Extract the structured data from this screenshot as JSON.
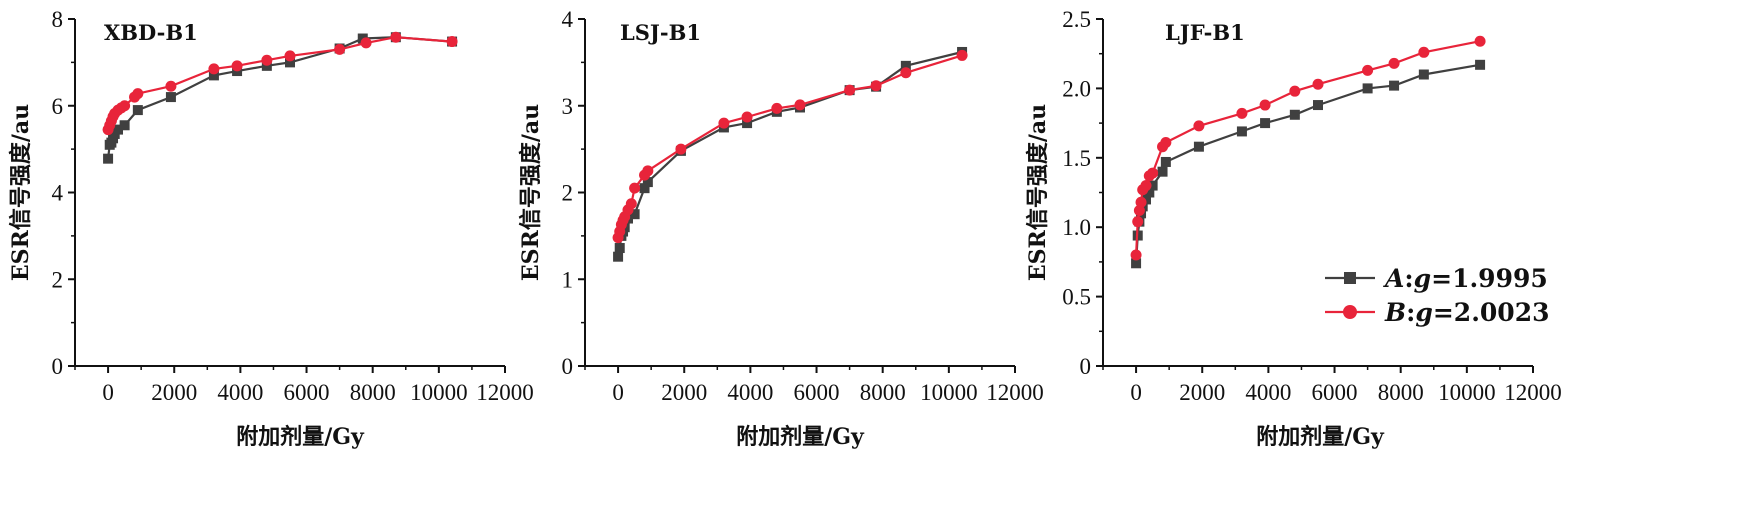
{
  "chart_data": [
    {
      "type": "line",
      "title": "XBD-B1",
      "xlabel": "附加剂量/Gy",
      "ylabel": "ESR信号强度/au",
      "xlim": [
        -1000,
        12000
      ],
      "ylim": [
        0,
        8
      ],
      "xticks": [
        "0",
        "2000",
        "4000",
        "6000",
        "8000",
        "10000",
        "12000"
      ],
      "xtick_values": [
        0,
        2000,
        4000,
        6000,
        8000,
        10000,
        12000
      ],
      "yticks": [
        "0",
        "2",
        "4",
        "6",
        "8"
      ],
      "ytick_values": [
        0,
        2,
        4,
        6,
        8
      ],
      "series": [
        {
          "name": "A:g=1.9995",
          "x": [
            0,
            50,
            100,
            150,
            200,
            300,
            500,
            900,
            1900,
            3200,
            3900,
            4800,
            5500,
            7000,
            7700,
            8700,
            10400
          ],
          "y": [
            4.78,
            5.1,
            5.15,
            5.25,
            5.35,
            5.45,
            5.55,
            5.9,
            6.2,
            6.7,
            6.8,
            6.92,
            7.0,
            7.32,
            7.55,
            7.58,
            7.48
          ]
        },
        {
          "name": "B:g=2.0023",
          "x": [
            0,
            50,
            100,
            150,
            200,
            300,
            400,
            500,
            800,
            900,
            1900,
            3200,
            3900,
            4800,
            5500,
            7000,
            7800,
            8700,
            10400
          ],
          "y": [
            5.45,
            5.55,
            5.65,
            5.75,
            5.82,
            5.9,
            5.95,
            6.0,
            6.2,
            6.28,
            6.45,
            6.85,
            6.92,
            7.05,
            7.15,
            7.3,
            7.45,
            7.58,
            7.48
          ]
        }
      ]
    },
    {
      "type": "line",
      "title": "LSJ-B1",
      "xlabel": "附加剂量/Gy",
      "ylabel": "ESR信号强度/au",
      "xlim": [
        -1000,
        12000
      ],
      "ylim": [
        0,
        4
      ],
      "xticks": [
        "0",
        "2000",
        "4000",
        "6000",
        "8000",
        "10000",
        "12000"
      ],
      "xtick_values": [
        0,
        2000,
        4000,
        6000,
        8000,
        10000,
        12000
      ],
      "yticks": [
        "0",
        "1",
        "2",
        "3",
        "4"
      ],
      "ytick_values": [
        0,
        1,
        2,
        3,
        4
      ],
      "series": [
        {
          "name": "A:g=1.9995",
          "x": [
            0,
            50,
            100,
            150,
            200,
            300,
            500,
            800,
            900,
            1900,
            3200,
            3900,
            4800,
            5500,
            7000,
            7800,
            8700,
            10400
          ],
          "y": [
            1.26,
            1.36,
            1.5,
            1.55,
            1.6,
            1.7,
            1.75,
            2.05,
            2.12,
            2.48,
            2.75,
            2.8,
            2.93,
            2.98,
            3.18,
            3.22,
            3.46,
            3.62
          ]
        },
        {
          "name": "B:g=2.0023",
          "x": [
            0,
            50,
            100,
            150,
            200,
            300,
            400,
            500,
            800,
            900,
            1900,
            3200,
            3900,
            4800,
            5500,
            7000,
            7800,
            8700,
            10400
          ],
          "y": [
            1.48,
            1.55,
            1.63,
            1.68,
            1.72,
            1.8,
            1.87,
            2.05,
            2.2,
            2.25,
            2.5,
            2.8,
            2.87,
            2.97,
            3.01,
            3.18,
            3.23,
            3.38,
            3.58
          ]
        }
      ]
    },
    {
      "type": "line",
      "title": "LJF-B1",
      "xlabel": "附加剂量/Gy",
      "ylabel": "ESR信号强度/au",
      "xlim": [
        -1000,
        12000
      ],
      "ylim": [
        0,
        2.5
      ],
      "xticks": [
        "0",
        "2000",
        "4000",
        "6000",
        "8000",
        "10000",
        "12000"
      ],
      "xtick_values": [
        0,
        2000,
        4000,
        6000,
        8000,
        10000,
        12000
      ],
      "yticks": [
        "0",
        "0.5",
        "1.0",
        "1.5",
        "2.0",
        "2.5"
      ],
      "ytick_values": [
        0,
        0.5,
        1.0,
        1.5,
        2.0,
        2.5
      ],
      "series": [
        {
          "name": "A:g=1.9995",
          "x": [
            0,
            50,
            100,
            150,
            200,
            300,
            400,
            500,
            800,
            900,
            1900,
            3200,
            3900,
            4800,
            5500,
            7000,
            7800,
            8700,
            10400
          ],
          "y": [
            0.74,
            0.94,
            1.04,
            1.1,
            1.15,
            1.2,
            1.25,
            1.3,
            1.4,
            1.47,
            1.58,
            1.69,
            1.75,
            1.81,
            1.88,
            2.0,
            2.02,
            2.1,
            2.17
          ]
        },
        {
          "name": "B:g=2.0023",
          "x": [
            0,
            50,
            100,
            150,
            200,
            300,
            400,
            500,
            800,
            900,
            1900,
            3200,
            3900,
            4800,
            5500,
            7000,
            7800,
            8700,
            10400
          ],
          "y": [
            0.8,
            1.04,
            1.12,
            1.18,
            1.27,
            1.3,
            1.37,
            1.39,
            1.58,
            1.61,
            1.73,
            1.82,
            1.88,
            1.98,
            2.03,
            2.13,
            2.18,
            2.26,
            2.34
          ]
        }
      ]
    }
  ],
  "legend": {
    "items": [
      {
        "label": "A:g=1.9995",
        "letter": "A",
        "gval": "1.9995",
        "color": "#404040",
        "marker": "square"
      },
      {
        "label": "B:g=2.0023",
        "letter": "B",
        "gval": "2.0023",
        "color": "#e8243a",
        "marker": "circle"
      }
    ],
    "placement": "lower-right of third panel"
  },
  "colors": {
    "series_a": "#404040",
    "series_b": "#e8243a",
    "axis": "#111111"
  }
}
